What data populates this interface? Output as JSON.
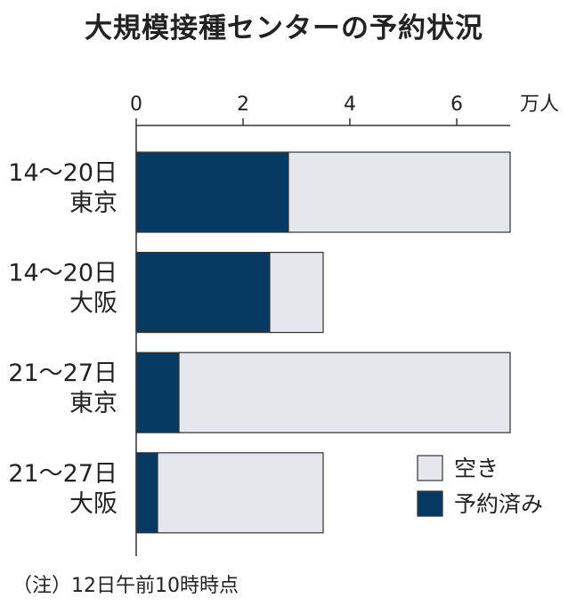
{
  "chart_data": {
    "type": "bar",
    "orientation": "horizontal",
    "stacked": true,
    "title": "大規模接種センターの予約状況",
    "unit_label": "万人",
    "xlim": [
      0,
      7
    ],
    "ticks": [
      0,
      2,
      4,
      6
    ],
    "grid": false,
    "legend_position": "bottom-right",
    "categories": [
      [
        "14〜20日",
        "東京"
      ],
      [
        "14〜20日",
        "大阪"
      ],
      [
        "21〜27日",
        "東京"
      ],
      [
        "21〜27日",
        "大阪"
      ]
    ],
    "series": [
      {
        "name": "予約済み",
        "color": "#063a63",
        "values": [
          2.85,
          2.5,
          0.8,
          0.4
        ]
      },
      {
        "name": "空き",
        "color": "#e6e7ec",
        "values": [
          4.15,
          1.0,
          6.2,
          3.1
        ]
      }
    ],
    "legend_order": [
      1,
      0
    ],
    "note": "（注）12日午前10時時点"
  }
}
